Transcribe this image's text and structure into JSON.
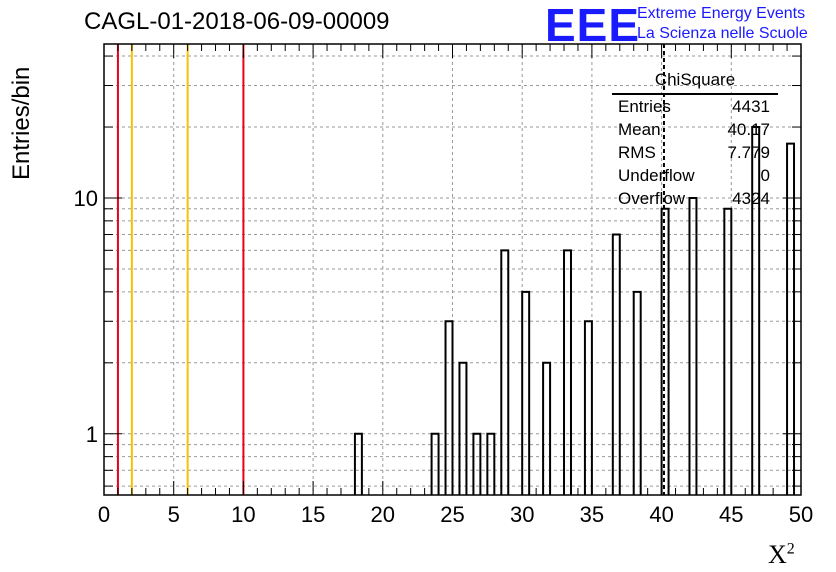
{
  "title": "CAGL-01-2018-06-09-00009",
  "logo": {
    "mark": "EEE",
    "line1": "Extreme Energy Events",
    "line2": "La Scienza nelle Scuole",
    "color": "#1a1aff"
  },
  "stats_box": {
    "title": "ChiSquare",
    "rows": [
      {
        "label": "Entries",
        "value": "4431"
      },
      {
        "label": "Mean",
        "value": "40.17"
      },
      {
        "label": "RMS",
        "value": "7.779"
      },
      {
        "label": "Underflow",
        "value": "0"
      },
      {
        "label": "Overflow",
        "value": "4324"
      }
    ]
  },
  "chart_data": {
    "type": "bar",
    "title": "CAGL-01-2018-06-09-00009",
    "xlabel": "X",
    "xlabel_superscript": "2",
    "ylabel": "Entries/bin",
    "xlim": [
      0,
      50
    ],
    "ylim": [
      0.55,
      45
    ],
    "yscale": "log",
    "grid": true,
    "x_ticks": [
      "0",
      "5",
      "10",
      "15",
      "20",
      "25",
      "30",
      "35",
      "40",
      "45",
      "50"
    ],
    "y_ticks": [
      "1",
      "10"
    ],
    "bin_width": 0.5,
    "bins": [
      {
        "x": 18.0,
        "value": 1
      },
      {
        "x": 23.5,
        "value": 1
      },
      {
        "x": 24.5,
        "value": 3
      },
      {
        "x": 25.5,
        "value": 2
      },
      {
        "x": 26.5,
        "value": 1
      },
      {
        "x": 27.5,
        "value": 1
      },
      {
        "x": 28.5,
        "value": 6
      },
      {
        "x": 30.0,
        "value": 4
      },
      {
        "x": 31.5,
        "value": 2
      },
      {
        "x": 33.0,
        "value": 6
      },
      {
        "x": 34.5,
        "value": 3
      },
      {
        "x": 36.5,
        "value": 7
      },
      {
        "x": 38.0,
        "value": 4
      },
      {
        "x": 40.0,
        "value": 9
      },
      {
        "x": 42.0,
        "value": 10
      },
      {
        "x": 44.5,
        "value": 9
      },
      {
        "x": 46.5,
        "value": 20
      },
      {
        "x": 49.0,
        "value": 17
      }
    ],
    "vertical_lines": [
      {
        "x": 1,
        "color": "#e8001c"
      },
      {
        "x": 2,
        "color": "#f5c400"
      },
      {
        "x": 6,
        "color": "#f5c400"
      },
      {
        "x": 10,
        "color": "#e8001c"
      }
    ],
    "mean_line_x": 40.17
  }
}
